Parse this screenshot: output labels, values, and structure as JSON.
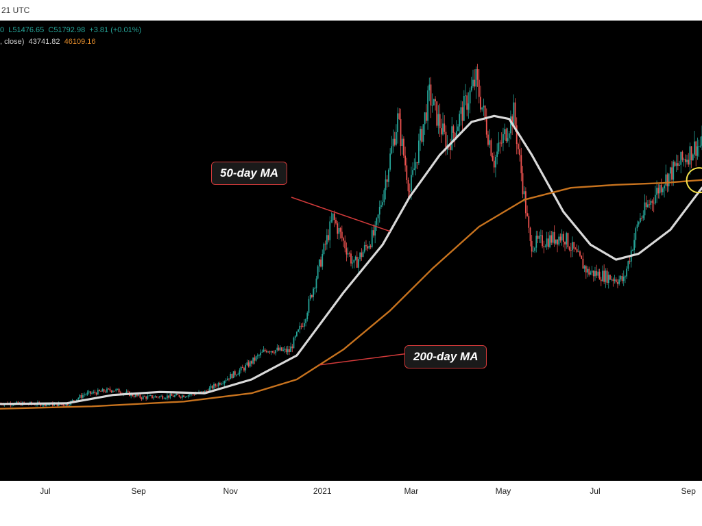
{
  "header": {
    "timestamp_fragment": "21 UTC",
    "ohlc_line": {
      "open_fragment": "0",
      "low": "L51476.65",
      "close": "C51792.98",
      "change": "+3.81 (+0.01%)"
    },
    "ma_line": {
      "label_fragment": ", close)",
      "ma50_value": "43741.82",
      "ma200_value": "46109.16"
    }
  },
  "annotations": {
    "ma50_label": "50-day MA",
    "ma200_label": "200-day MA"
  },
  "colors": {
    "background": "#000000",
    "up_candle": "#26a69a",
    "down_candle": "#ef5350",
    "ma50": "#d9d9d9",
    "ma200": "#c8731e",
    "callout_border": "#d23a3a",
    "crossover_circle": "#f5e04a"
  },
  "chart_data": {
    "type": "line",
    "title": "",
    "xlabel": "",
    "ylabel": "",
    "x_ticks": [
      "Jul",
      "Sep",
      "Nov",
      "2021",
      "Mar",
      "May",
      "Jul",
      "Sep"
    ],
    "x_tick_dates": [
      "2020-07-01",
      "2020-09-01",
      "2020-11-01",
      "2021-01-01",
      "2021-03-01",
      "2021-05-01",
      "2021-07-01",
      "2021-09-01"
    ],
    "x_range": [
      "2020-06-01",
      "2021-09-10"
    ],
    "ylim": [
      0,
      70000
    ],
    "grid": false,
    "price_series": {
      "name": "",
      "points": [
        [
          "2020-06-01",
          9500
        ],
        [
          "2020-07-15",
          9300
        ],
        [
          "2020-07-27",
          11000
        ],
        [
          "2020-08-15",
          11800
        ],
        [
          "2020-09-03",
          10500
        ],
        [
          "2020-09-30",
          10800
        ],
        [
          "2020-10-15",
          11400
        ],
        [
          "2020-10-25",
          13000
        ],
        [
          "2020-11-10",
          15400
        ],
        [
          "2020-11-25",
          18500
        ],
        [
          "2020-12-10",
          18200
        ],
        [
          "2020-12-20",
          23500
        ],
        [
          "2021-01-08",
          40500
        ],
        [
          "2021-01-22",
          32500
        ],
        [
          "2021-02-05",
          38000
        ],
        [
          "2021-02-20",
          57000
        ],
        [
          "2021-02-28",
          45000
        ],
        [
          "2021-03-13",
          61000
        ],
        [
          "2021-03-25",
          52500
        ],
        [
          "2021-04-13",
          63500
        ],
        [
          "2021-04-25",
          50000
        ],
        [
          "2021-05-08",
          58000
        ],
        [
          "2021-05-19",
          36000
        ],
        [
          "2021-06-10",
          37500
        ],
        [
          "2021-06-26",
          31500
        ],
        [
          "2021-07-20",
          30000
        ],
        [
          "2021-07-30",
          40000
        ],
        [
          "2021-08-15",
          46500
        ],
        [
          "2021-09-06",
          52500
        ]
      ]
    },
    "series": [
      {
        "name": "50-day MA",
        "points": [
          [
            "2020-06-01",
            9400
          ],
          [
            "2020-07-15",
            9500
          ],
          [
            "2020-08-15",
            10900
          ],
          [
            "2020-09-15",
            11400
          ],
          [
            "2020-10-15",
            11200
          ],
          [
            "2020-11-15",
            13500
          ],
          [
            "2020-12-15",
            17500
          ],
          [
            "2021-01-15",
            28000
          ],
          [
            "2021-02-10",
            36000
          ],
          [
            "2021-02-28",
            44000
          ],
          [
            "2021-03-20",
            51000
          ],
          [
            "2021-04-10",
            56500
          ],
          [
            "2021-04-25",
            57500
          ],
          [
            "2021-05-05",
            57000
          ],
          [
            "2021-05-20",
            51000
          ],
          [
            "2021-06-10",
            41500
          ],
          [
            "2021-06-28",
            36000
          ],
          [
            "2021-07-15",
            33500
          ],
          [
            "2021-07-30",
            34500
          ],
          [
            "2021-08-20",
            38500
          ],
          [
            "2021-09-10",
            45500
          ]
        ]
      },
      {
        "name": "200-day MA",
        "points": [
          [
            "2020-06-01",
            8600
          ],
          [
            "2020-08-01",
            9000
          ],
          [
            "2020-10-01",
            9800
          ],
          [
            "2020-11-15",
            11200
          ],
          [
            "2020-12-15",
            13500
          ],
          [
            "2021-01-15",
            18500
          ],
          [
            "2021-02-15",
            25000
          ],
          [
            "2021-03-15",
            32000
          ],
          [
            "2021-04-15",
            39000
          ],
          [
            "2021-05-15",
            43500
          ],
          [
            "2021-06-15",
            45500
          ],
          [
            "2021-07-15",
            46000
          ],
          [
            "2021-08-15",
            46300
          ],
          [
            "2021-09-10",
            46800
          ]
        ]
      }
    ]
  }
}
